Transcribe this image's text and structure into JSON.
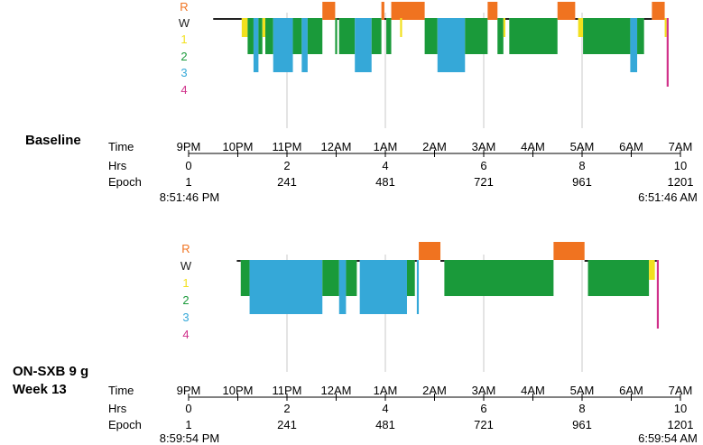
{
  "stage_colors": {
    "R": "#f07320",
    "W": "#222222",
    "1": "#f2e01e",
    "2": "#1a9a3a",
    "3": "#35a8d8",
    "4": "#d0308a"
  },
  "chart_data": [
    {
      "type": "hypnogram",
      "title": "Baseline",
      "stages": [
        "R",
        "W",
        "1",
        "2",
        "3",
        "4"
      ],
      "axes": {
        "time_label": "Time",
        "time_ticks": [
          "9PM",
          "10PM",
          "11PM",
          "12AM",
          "1AM",
          "2AM",
          "3AM",
          "4AM",
          "5AM",
          "6AM",
          "7AM"
        ],
        "hrs_label": "Hrs",
        "hrs_ticks": [
          "0",
          "2",
          "4",
          "6",
          "8",
          "10"
        ],
        "epoch_label": "Epoch",
        "epoch_ticks": [
          "1",
          "241",
          "481",
          "721",
          "961",
          "1201"
        ],
        "start_clock": "8:51:46 PM",
        "end_clock": "6:51:46 AM",
        "hrs_range": [
          0,
          10
        ]
      },
      "gridline_hours": [
        2,
        4,
        6,
        8
      ],
      "segments": [
        {
          "stage": "W",
          "start": 0.5,
          "end": 1.08
        },
        {
          "stage": "1",
          "start": 1.08,
          "end": 1.2
        },
        {
          "stage": "2",
          "start": 1.2,
          "end": 1.32
        },
        {
          "stage": "3",
          "start": 1.32,
          "end": 1.42
        },
        {
          "stage": "2",
          "start": 1.42,
          "end": 1.5
        },
        {
          "stage": "1",
          "start": 1.5,
          "end": 1.56
        },
        {
          "stage": "2",
          "start": 1.56,
          "end": 1.72
        },
        {
          "stage": "3",
          "start": 1.72,
          "end": 2.12
        },
        {
          "stage": "2",
          "start": 2.12,
          "end": 2.3
        },
        {
          "stage": "3",
          "start": 2.3,
          "end": 2.42
        },
        {
          "stage": "2",
          "start": 2.42,
          "end": 2.72
        },
        {
          "stage": "R",
          "start": 2.72,
          "end": 2.98
        },
        {
          "stage": "2",
          "start": 2.98,
          "end": 3.02
        },
        {
          "stage": "W",
          "start": 3.02,
          "end": 3.06
        },
        {
          "stage": "2",
          "start": 3.06,
          "end": 3.38
        },
        {
          "stage": "3",
          "start": 3.38,
          "end": 3.72
        },
        {
          "stage": "2",
          "start": 3.72,
          "end": 3.92
        },
        {
          "stage": "R",
          "start": 3.92,
          "end": 3.98
        },
        {
          "stage": "W",
          "start": 3.98,
          "end": 4.02
        },
        {
          "stage": "2",
          "start": 4.02,
          "end": 4.12
        },
        {
          "stage": "R",
          "start": 4.12,
          "end": 4.8
        },
        {
          "stage": "1",
          "start": 4.3,
          "end": 4.34
        },
        {
          "stage": "2",
          "start": 4.8,
          "end": 5.06
        },
        {
          "stage": "3",
          "start": 5.06,
          "end": 5.62
        },
        {
          "stage": "2",
          "start": 5.62,
          "end": 6.08
        },
        {
          "stage": "R",
          "start": 6.08,
          "end": 6.28
        },
        {
          "stage": "2",
          "start": 6.28,
          "end": 6.4
        },
        {
          "stage": "1",
          "start": 6.4,
          "end": 6.44
        },
        {
          "stage": "W",
          "start": 6.44,
          "end": 6.52
        },
        {
          "stage": "2",
          "start": 6.52,
          "end": 7.5
        },
        {
          "stage": "R",
          "start": 7.5,
          "end": 7.86
        },
        {
          "stage": "W",
          "start": 7.86,
          "end": 7.92
        },
        {
          "stage": "1",
          "start": 7.92,
          "end": 8.02
        },
        {
          "stage": "2",
          "start": 8.02,
          "end": 8.98
        },
        {
          "stage": "3",
          "start": 8.98,
          "end": 9.12
        },
        {
          "stage": "2",
          "start": 9.12,
          "end": 9.26
        },
        {
          "stage": "W",
          "start": 9.26,
          "end": 9.42
        },
        {
          "stage": "R",
          "start": 9.42,
          "end": 9.68
        },
        {
          "stage": "1",
          "start": 9.68,
          "end": 9.72
        },
        {
          "stage": "4",
          "start": 9.72,
          "end": 9.76
        }
      ]
    },
    {
      "type": "hypnogram",
      "title_lines": [
        "ON-SXB 9 g",
        "Week 13"
      ],
      "stages": [
        "R",
        "W",
        "1",
        "2",
        "3",
        "4"
      ],
      "axes": {
        "time_label": "Time",
        "time_ticks": [
          "9PM",
          "10PM",
          "11PM",
          "12AM",
          "1AM",
          "2AM",
          "3AM",
          "4AM",
          "5AM",
          "6AM",
          "7AM"
        ],
        "hrs_label": "Hrs",
        "hrs_ticks": [
          "0",
          "2",
          "4",
          "6",
          "8",
          "10"
        ],
        "epoch_label": "Epoch",
        "epoch_ticks": [
          "1",
          "241",
          "481",
          "721",
          "961",
          "1201"
        ],
        "start_clock": "8:59:54 PM",
        "end_clock": "6:59:54 AM",
        "hrs_range": [
          0,
          10
        ]
      },
      "gridline_hours": [
        2,
        4,
        6,
        8
      ],
      "segments": [
        {
          "stage": "W",
          "start": 0.98,
          "end": 1.06
        },
        {
          "stage": "2",
          "start": 1.06,
          "end": 1.24
        },
        {
          "stage": "3",
          "start": 1.24,
          "end": 2.72
        },
        {
          "stage": "2",
          "start": 2.72,
          "end": 3.06
        },
        {
          "stage": "3",
          "start": 3.06,
          "end": 3.2
        },
        {
          "stage": "2",
          "start": 3.2,
          "end": 3.42
        },
        {
          "stage": "W",
          "start": 3.42,
          "end": 3.48
        },
        {
          "stage": "3",
          "start": 3.48,
          "end": 4.44
        },
        {
          "stage": "2",
          "start": 4.44,
          "end": 4.6
        },
        {
          "stage": "W",
          "start": 4.6,
          "end": 4.64
        },
        {
          "stage": "3",
          "start": 4.64,
          "end": 4.68
        },
        {
          "stage": "R",
          "start": 4.68,
          "end": 5.12
        },
        {
          "stage": "W",
          "start": 5.12,
          "end": 5.2
        },
        {
          "stage": "2",
          "start": 5.2,
          "end": 7.42
        },
        {
          "stage": "R",
          "start": 7.42,
          "end": 8.05
        },
        {
          "stage": "W",
          "start": 8.05,
          "end": 8.12
        },
        {
          "stage": "2",
          "start": 8.12,
          "end": 9.36
        },
        {
          "stage": "1",
          "start": 9.36,
          "end": 9.48
        },
        {
          "stage": "W",
          "start": 9.48,
          "end": 9.52
        },
        {
          "stage": "4",
          "start": 9.52,
          "end": 9.56
        }
      ]
    }
  ]
}
